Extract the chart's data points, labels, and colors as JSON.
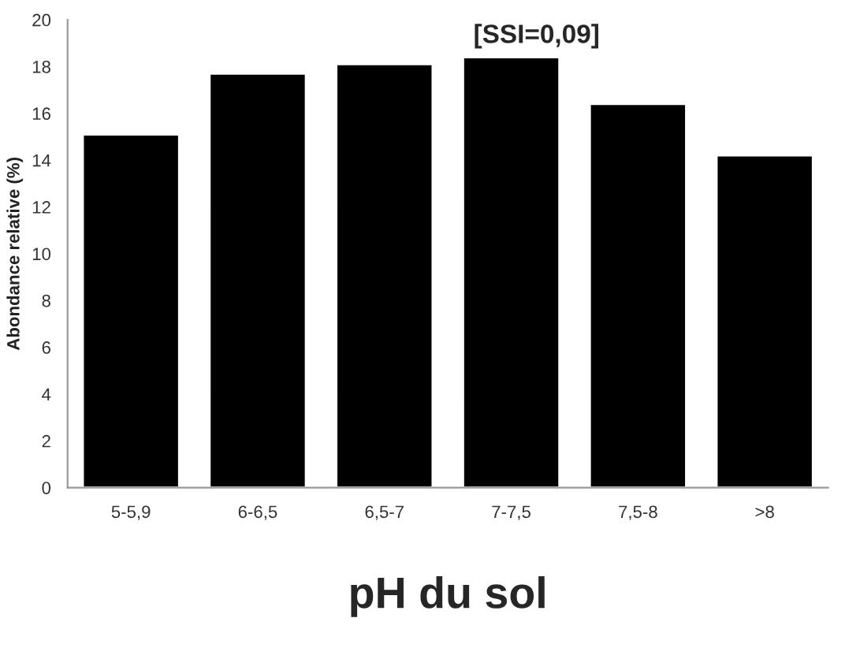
{
  "chart_data": {
    "type": "bar",
    "categories": [
      "5-5,9",
      "6-6,5",
      "6,5-7",
      "7-7,5",
      "7,5-8",
      ">8"
    ],
    "values": [
      15.1,
      17.7,
      18.1,
      18.4,
      16.4,
      14.2
    ],
    "color": "#000000",
    "xlabel": "pH du sol",
    "ylabel": "Abondance relative (%)",
    "annotations": [
      "[SSI=0,09]"
    ],
    "ylim": [
      0,
      20
    ],
    "yticks": [
      0,
      2,
      4,
      6,
      8,
      10,
      12,
      14,
      16,
      18,
      20
    ],
    "grid": false,
    "legend": false
  }
}
